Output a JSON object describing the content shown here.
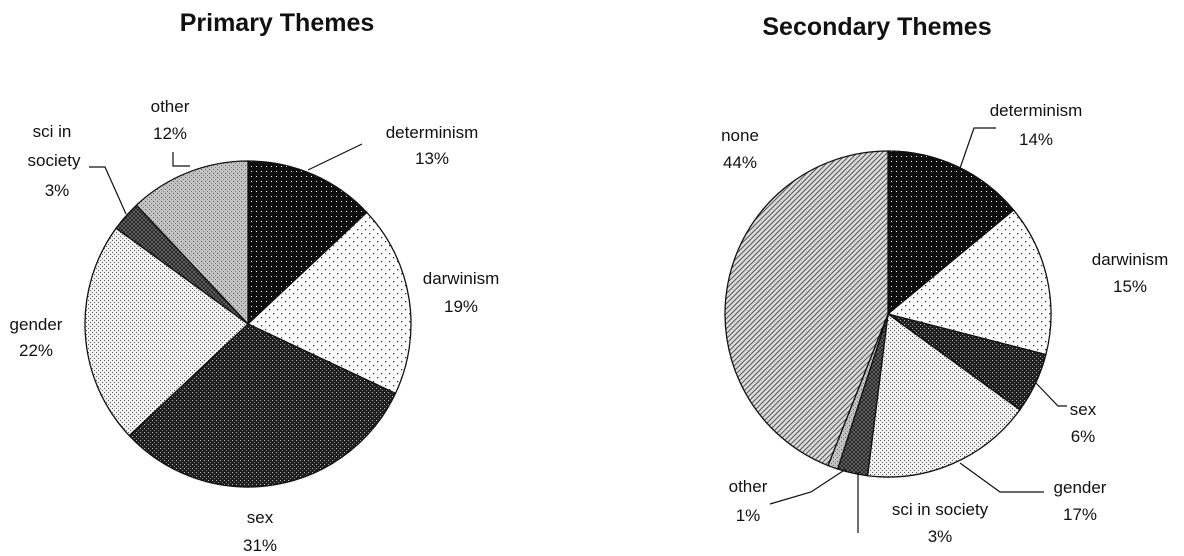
{
  "chart_data": [
    {
      "type": "pie",
      "title": "Primary Themes",
      "slices": [
        {
          "label": "determinism",
          "value": 13,
          "value_label": "13%",
          "pattern": "dense-dots"
        },
        {
          "label": "darwinism",
          "value": 19,
          "value_label": "19%",
          "pattern": "sparse-dots"
        },
        {
          "label": "sex",
          "value": 31,
          "value_label": "31%",
          "pattern": "dark-dots"
        },
        {
          "label": "gender",
          "value": 22,
          "value_label": "22%",
          "pattern": "fine-dots"
        },
        {
          "label": "sci in society",
          "label_lines": [
            "sci in",
            "society"
          ],
          "value": 3,
          "value_label": "3%",
          "pattern": "crosshatch"
        },
        {
          "label": "other",
          "value": 12,
          "value_label": "12%",
          "pattern": "grey-dots"
        }
      ]
    },
    {
      "type": "pie",
      "title": "Secondary Themes",
      "slices": [
        {
          "label": "determinism",
          "value": 14,
          "value_label": "14%",
          "pattern": "dense-dots"
        },
        {
          "label": "darwinism",
          "value": 15,
          "value_label": "15%",
          "pattern": "sparse-dots"
        },
        {
          "label": "sex",
          "value": 6,
          "value_label": "6%",
          "pattern": "dark-dots"
        },
        {
          "label": "gender",
          "value": 17,
          "value_label": "17%",
          "pattern": "fine-dots"
        },
        {
          "label": "sci in society",
          "value": 3,
          "value_label": "3%",
          "pattern": "crosshatch"
        },
        {
          "label": "other",
          "value": 1,
          "value_label": "1%",
          "pattern": "grey-dots"
        },
        {
          "label": "none",
          "value": 44,
          "value_label": "44%",
          "pattern": "diagonal-stripes"
        }
      ]
    }
  ]
}
